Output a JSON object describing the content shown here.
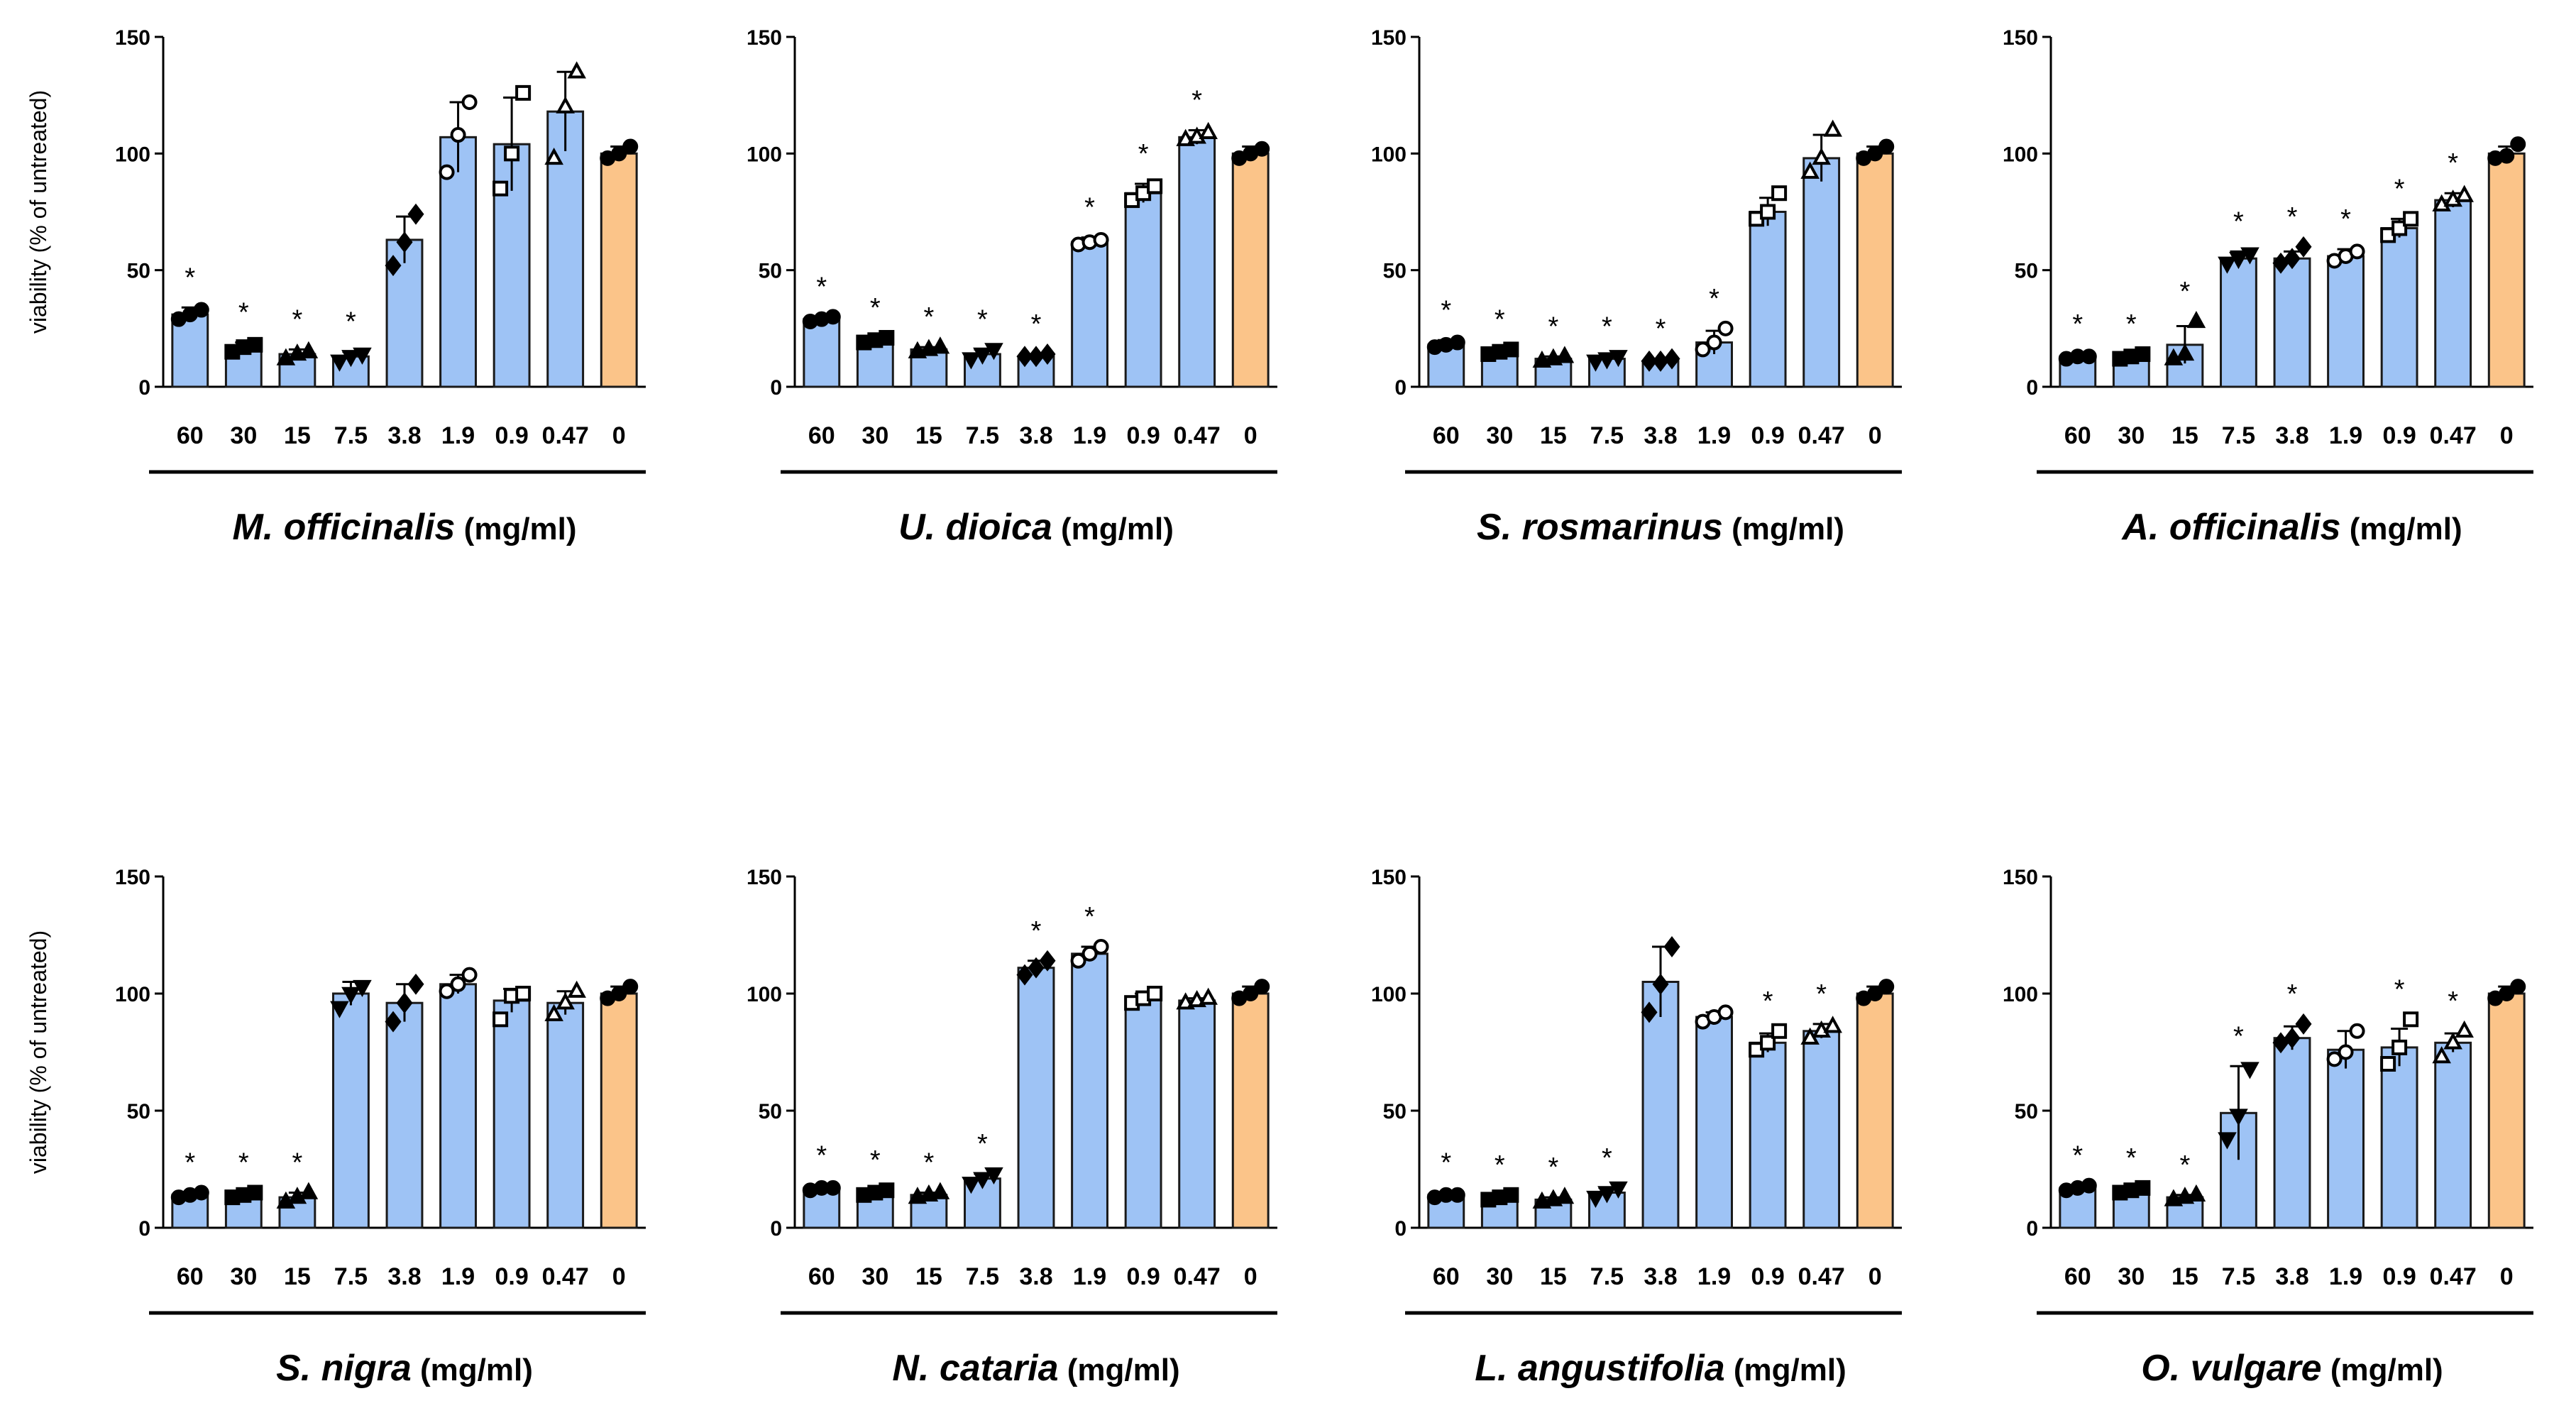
{
  "unit_label": "(mg/ml)",
  "colors": {
    "treated": "#9ec3f5",
    "control": "#fbc489",
    "edge": "#1a1a1a"
  },
  "chart_data": [
    {
      "type": "bar",
      "species": "M. officinalis",
      "ylabel": "viability (% of untreated)",
      "ylim": [
        0,
        150
      ],
      "yticks": [
        "0",
        "50",
        "100",
        "150"
      ],
      "categories": [
        "60",
        "30",
        "15",
        "7.5",
        "3.8",
        "1.9",
        "0.9",
        "0.47",
        "0"
      ],
      "values": [
        31,
        17,
        14,
        13,
        63,
        107,
        104,
        118,
        100
      ],
      "sd": [
        3,
        2,
        2,
        2,
        10,
        15,
        20,
        17,
        3
      ],
      "points": [
        [
          29,
          31,
          33
        ],
        [
          15,
          17,
          18
        ],
        [
          12,
          14,
          15
        ],
        [
          11,
          13,
          14
        ],
        [
          52,
          62,
          74
        ],
        [
          92,
          108,
          122
        ],
        [
          85,
          100,
          126
        ],
        [
          98,
          120,
          135
        ],
        [
          98,
          100,
          103
        ]
      ],
      "significant": [
        true,
        true,
        true,
        true,
        false,
        false,
        false,
        false,
        false
      ]
    },
    {
      "type": "bar",
      "species": "U. dioica",
      "ylabel": "",
      "ylim": [
        0,
        150
      ],
      "yticks": [
        "0",
        "50",
        "100",
        "150"
      ],
      "categories": [
        "60",
        "30",
        "15",
        "7.5",
        "3.8",
        "1.9",
        "0.9",
        "0.47",
        "0"
      ],
      "values": [
        29,
        20,
        16,
        14,
        13,
        62,
        83,
        107,
        100
      ],
      "sd": [
        1,
        1,
        1,
        2,
        1,
        2,
        4,
        3,
        3
      ],
      "points": [
        [
          28,
          29,
          30
        ],
        [
          19,
          20,
          21
        ],
        [
          15,
          16,
          17
        ],
        [
          12,
          14,
          16
        ],
        [
          13,
          13,
          14
        ],
        [
          61,
          62,
          63
        ],
        [
          80,
          83,
          86
        ],
        [
          106,
          107,
          109
        ],
        [
          98,
          100,
          102
        ]
      ],
      "significant": [
        true,
        true,
        true,
        true,
        true,
        true,
        true,
        true,
        false
      ]
    },
    {
      "type": "bar",
      "species": "S. rosmarinus",
      "ylabel": "",
      "ylim": [
        0,
        150
      ],
      "yticks": [
        "0",
        "50",
        "100",
        "150"
      ],
      "categories": [
        "60",
        "30",
        "15",
        "7.5",
        "3.8",
        "1.9",
        "0.9",
        "0.47",
        "0"
      ],
      "values": [
        18,
        15,
        12,
        12,
        11,
        19,
        75,
        98,
        100
      ],
      "sd": [
        2,
        1,
        1,
        1,
        1,
        5,
        6,
        10,
        3
      ],
      "points": [
        [
          17,
          18,
          19
        ],
        [
          14,
          15,
          16
        ],
        [
          11,
          12,
          13
        ],
        [
          11,
          12,
          13
        ],
        [
          11,
          11,
          12
        ],
        [
          16,
          19,
          25
        ],
        [
          72,
          75,
          83
        ],
        [
          92,
          98,
          110
        ],
        [
          98,
          100,
          103
        ]
      ],
      "significant": [
        true,
        true,
        true,
        true,
        true,
        true,
        false,
        false,
        false
      ]
    },
    {
      "type": "bar",
      "species": "A. officinalis",
      "ylabel": "",
      "ylim": [
        0,
        150
      ],
      "yticks": [
        "0",
        "50",
        "100",
        "150"
      ],
      "categories": [
        "60",
        "30",
        "15",
        "7.5",
        "3.8",
        "1.9",
        "0.9",
        "0.47",
        "0"
      ],
      "values": [
        13,
        13,
        18,
        55,
        55,
        56,
        68,
        80,
        100
      ],
      "sd": [
        1,
        1,
        8,
        3,
        3,
        3,
        4,
        3,
        3
      ],
      "points": [
        [
          12,
          13,
          13
        ],
        [
          12,
          13,
          14
        ],
        [
          12,
          14,
          28
        ],
        [
          53,
          55,
          57
        ],
        [
          53,
          55,
          60
        ],
        [
          54,
          56,
          58
        ],
        [
          65,
          68,
          72
        ],
        [
          78,
          80,
          82
        ],
        [
          98,
          99,
          104
        ]
      ],
      "significant": [
        true,
        true,
        true,
        true,
        true,
        true,
        true,
        true,
        false
      ]
    },
    {
      "type": "bar",
      "species": "S. nigra",
      "ylabel": "viability (% of untreated)",
      "ylim": [
        0,
        150
      ],
      "yticks": [
        "0",
        "50",
        "100",
        "150"
      ],
      "categories": [
        "60",
        "30",
        "15",
        "7.5",
        "3.8",
        "1.9",
        "0.9",
        "0.47",
        "0"
      ],
      "values": [
        14,
        14,
        13,
        100,
        96,
        104,
        97,
        96,
        100
      ],
      "sd": [
        1,
        1,
        2,
        5,
        8,
        4,
        5,
        5,
        3
      ],
      "points": [
        [
          13,
          14,
          15
        ],
        [
          13,
          14,
          15
        ],
        [
          11,
          13,
          15
        ],
        [
          94,
          100,
          103
        ],
        [
          88,
          96,
          104
        ],
        [
          101,
          104,
          108
        ],
        [
          89,
          99,
          100
        ],
        [
          91,
          96,
          101
        ],
        [
          98,
          100,
          103
        ]
      ],
      "significant": [
        true,
        true,
        true,
        false,
        false,
        false,
        false,
        false,
        false
      ]
    },
    {
      "type": "bar",
      "species": "N. cataria",
      "ylabel": "",
      "ylim": [
        0,
        150
      ],
      "yticks": [
        "0",
        "50",
        "100",
        "150"
      ],
      "categories": [
        "60",
        "30",
        "15",
        "7.5",
        "3.8",
        "1.9",
        "0.9",
        "0.47",
        "0"
      ],
      "values": [
        17,
        15,
        14,
        21,
        111,
        117,
        98,
        97,
        100
      ],
      "sd": [
        1,
        1,
        1,
        2,
        3,
        3,
        2,
        1,
        3
      ],
      "points": [
        [
          16,
          17,
          17
        ],
        [
          14,
          15,
          16
        ],
        [
          13,
          14,
          15
        ],
        [
          19,
          21,
          23
        ],
        [
          108,
          111,
          114
        ],
        [
          114,
          117,
          120
        ],
        [
          96,
          98,
          100
        ],
        [
          96,
          97,
          98
        ],
        [
          98,
          100,
          103
        ]
      ],
      "significant": [
        true,
        true,
        true,
        true,
        true,
        true,
        false,
        false,
        false
      ]
    },
    {
      "type": "bar",
      "species": "L. angustifolia",
      "ylabel": "",
      "ylim": [
        0,
        150
      ],
      "yticks": [
        "0",
        "50",
        "100",
        "150"
      ],
      "categories": [
        "60",
        "30",
        "15",
        "7.5",
        "3.8",
        "1.9",
        "0.9",
        "0.47",
        "0"
      ],
      "values": [
        14,
        13,
        12,
        15,
        105,
        90,
        79,
        84,
        100
      ],
      "sd": [
        1,
        1,
        1,
        2,
        15,
        2,
        4,
        3,
        3
      ],
      "points": [
        [
          13,
          14,
          14
        ],
        [
          12,
          13,
          14
        ],
        [
          11,
          12,
          13
        ],
        [
          13,
          15,
          17
        ],
        [
          92,
          104,
          120
        ],
        [
          88,
          90,
          92
        ],
        [
          76,
          79,
          84
        ],
        [
          81,
          84,
          86
        ],
        [
          98,
          100,
          103
        ]
      ],
      "significant": [
        true,
        true,
        true,
        true,
        false,
        false,
        true,
        true,
        false
      ]
    },
    {
      "type": "bar",
      "species": "O. vulgare",
      "ylabel": "",
      "ylim": [
        0,
        150
      ],
      "yticks": [
        "0",
        "50",
        "100",
        "150"
      ],
      "categories": [
        "60",
        "30",
        "15",
        "7.5",
        "3.8",
        "1.9",
        "0.9",
        "0.47",
        "0"
      ],
      "values": [
        17,
        16,
        13,
        49,
        81,
        76,
        77,
        79,
        100
      ],
      "sd": [
        1,
        1,
        1,
        20,
        5,
        8,
        8,
        4,
        3
      ],
      "points": [
        [
          16,
          17,
          18
        ],
        [
          15,
          16,
          17
        ],
        [
          12,
          13,
          14
        ],
        [
          38,
          48,
          68
        ],
        [
          79,
          81,
          87
        ],
        [
          72,
          75,
          84
        ],
        [
          70,
          77,
          89
        ],
        [
          73,
          79,
          84
        ],
        [
          98,
          100,
          103
        ]
      ],
      "significant": [
        true,
        true,
        true,
        true,
        true,
        false,
        true,
        true,
        false
      ]
    }
  ]
}
